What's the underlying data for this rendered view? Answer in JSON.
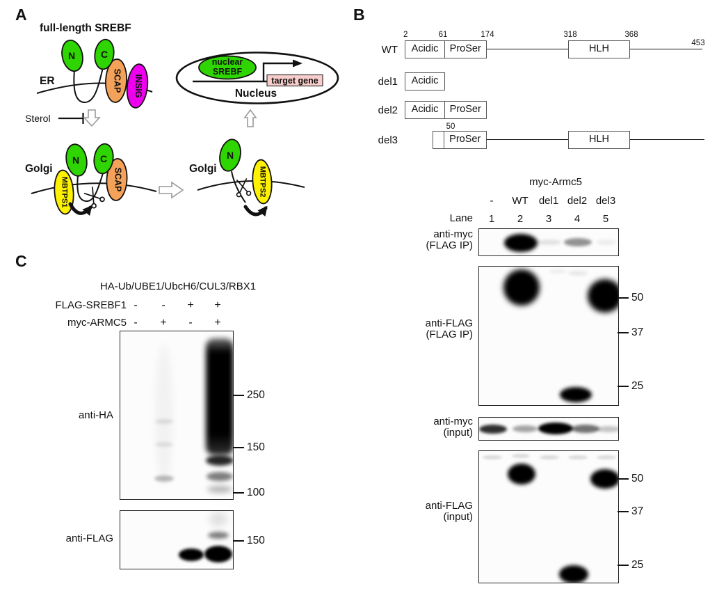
{
  "panelA": {
    "label": "A",
    "title": "full-length SREBF",
    "er_label": "ER",
    "sterol_label": "Sterol",
    "golgi_left_label": "Golgi",
    "golgi_right_label": "Golgi",
    "nucleus_label": "Nucleus",
    "nuclear_srebf_line1": "nuclear",
    "nuclear_srebf_line2": "SREBF",
    "target_gene_label": "target gene",
    "n_terminus": "N",
    "c_terminus": "C",
    "scap": "SCAP",
    "insig": "INSIG",
    "mbtps1": "MBTPS1",
    "mbtps2": "MBTPS2",
    "colors": {
      "srebf_green": "#2FD500",
      "scap_orange": "#F4A259",
      "insig_magenta": "#EE00EE",
      "protease_yellow": "#FFF200",
      "target_gene_pink": "#F8CDCB"
    }
  },
  "panelB": {
    "label": "B",
    "residue_numbers": {
      "r2": "2",
      "r61": "61",
      "r174": "174",
      "r318": "318",
      "r368": "368",
      "r453": "453",
      "r50": "50"
    },
    "domain_labels": {
      "acidic": "Acidic",
      "proser": "ProSer",
      "hlh": "HLH"
    },
    "construct_labels": {
      "wt": "WT",
      "del1": "del1",
      "del2": "del2",
      "del3": "del3"
    },
    "blot_group_title": "myc-Armc5",
    "col_labels": [
      "-",
      "WT",
      "del1",
      "del2",
      "del3"
    ],
    "lane_word": "Lane",
    "lane_numbers": [
      "1",
      "2",
      "3",
      "4",
      "5"
    ],
    "blots": [
      {
        "antibody": "anti-myc",
        "condition": "(FLAG IP)"
      },
      {
        "antibody": "anti-FLAG",
        "condition": "(FLAG IP)",
        "markers": [
          "50",
          "37",
          "25"
        ]
      },
      {
        "antibody": "anti-myc",
        "condition": "(input)"
      },
      {
        "antibody": "anti-FLAG",
        "condition": "(input)",
        "markers": [
          "50",
          "37",
          "25"
        ]
      }
    ]
  },
  "panelC": {
    "label": "C",
    "header": "HA-Ub/UbE1/UbcH6/CUL3/RBX1",
    "header_text": "HA-Ub/UBE1/UbcH6/CUL3/RBX1",
    "condition_rows": [
      {
        "label": "FLAG-SREBF1",
        "values": [
          "-",
          "-",
          "+",
          "+"
        ]
      },
      {
        "label": "myc-ARMC5",
        "values": [
          "-",
          "+",
          "-",
          "+"
        ]
      }
    ],
    "blots": [
      {
        "antibody": "anti-HA",
        "markers": [
          "250",
          "150",
          "100"
        ]
      },
      {
        "antibody": "anti-FLAG",
        "markers": [
          "150"
        ]
      }
    ]
  },
  "bands": {
    "b1": [
      [
        60,
        20,
        48,
        26,
        "#000000",
        3
      ],
      [
        101,
        19,
        34,
        8,
        "rgba(0,0,0,0.10)",
        2
      ],
      [
        142,
        19,
        40,
        12,
        "rgba(0,0,0,0.42)",
        2
      ],
      [
        183,
        19,
        30,
        8,
        "rgba(0,0,0,0.06)",
        2
      ]
    ],
    "b2": [
      [
        61,
        30,
        52,
        52,
        "#000000",
        4
      ],
      [
        181,
        42,
        50,
        48,
        "#000000",
        4
      ],
      [
        139,
        184,
        46,
        22,
        "#000000",
        3
      ],
      [
        142,
        9,
        28,
        7,
        "rgba(0,0,0,0.08)",
        2
      ],
      [
        113,
        7,
        24,
        6,
        "rgba(0,0,0,0.06)",
        2
      ]
    ],
    "b3": [
      [
        20,
        16,
        40,
        13,
        "rgba(0,0,0,0.82)",
        2
      ],
      [
        66,
        16,
        36,
        10,
        "rgba(0,0,0,0.35)",
        2
      ],
      [
        110,
        15,
        50,
        17,
        "#000000",
        2
      ],
      [
        153,
        16,
        40,
        12,
        "rgba(0,0,0,0.55)",
        2
      ],
      [
        186,
        16,
        34,
        9,
        "rgba(0,0,0,0.22)",
        2
      ]
    ],
    "b4": [
      [
        19,
        9,
        28,
        6,
        "rgba(0,0,0,0.13)",
        1.5
      ],
      [
        60,
        7,
        26,
        6,
        "rgba(0,0,0,0.13)",
        1.5
      ],
      [
        101,
        9,
        28,
        6,
        "rgba(0,0,0,0.13)",
        1.5
      ],
      [
        142,
        9,
        28,
        6,
        "rgba(0,0,0,0.13)",
        1.5
      ],
      [
        183,
        9,
        28,
        6,
        "rgba(0,0,0,0.13)",
        1.5
      ],
      [
        61,
        33,
        40,
        30,
        "#000000",
        3
      ],
      [
        181,
        40,
        42,
        28,
        "#000000",
        3
      ],
      [
        136,
        177,
        42,
        26,
        "#000000",
        3
      ]
    ],
    "c1": [
      [
        63,
        120,
        26,
        200,
        "rgba(0,0,0,0.04)",
        5
      ],
      [
        63,
        129,
        26,
        7,
        "rgba(0,0,0,0.10)",
        2
      ],
      [
        63,
        162,
        26,
        7,
        "rgba(0,0,0,0.09)",
        2
      ],
      [
        63,
        211,
        28,
        9,
        "rgba(0,0,0,0.26)",
        2
      ],
      [
        143,
        94,
        40,
        168,
        "linear-gradient(to bottom, rgba(0,0,0,0.55), #000 12%, #000 82%, rgba(0,0,0,0.8))",
        4,
        "12px"
      ],
      [
        143,
        185,
        40,
        15,
        "rgba(0,0,0,0.85)",
        3
      ],
      [
        143,
        208,
        38,
        13,
        "rgba(0,0,0,0.5)",
        3
      ],
      [
        143,
        227,
        36,
        10,
        "rgba(0,0,0,0.28)",
        4
      ]
    ],
    "c2": [
      [
        102,
        63,
        36,
        18,
        "#000000",
        2
      ],
      [
        141,
        62,
        40,
        24,
        "#000000",
        2
      ],
      [
        141,
        35,
        30,
        10,
        "rgba(0,0,0,0.5)",
        3
      ],
      [
        141,
        12,
        26,
        22,
        "rgba(0,0,0,0.10)",
        5
      ]
    ]
  }
}
